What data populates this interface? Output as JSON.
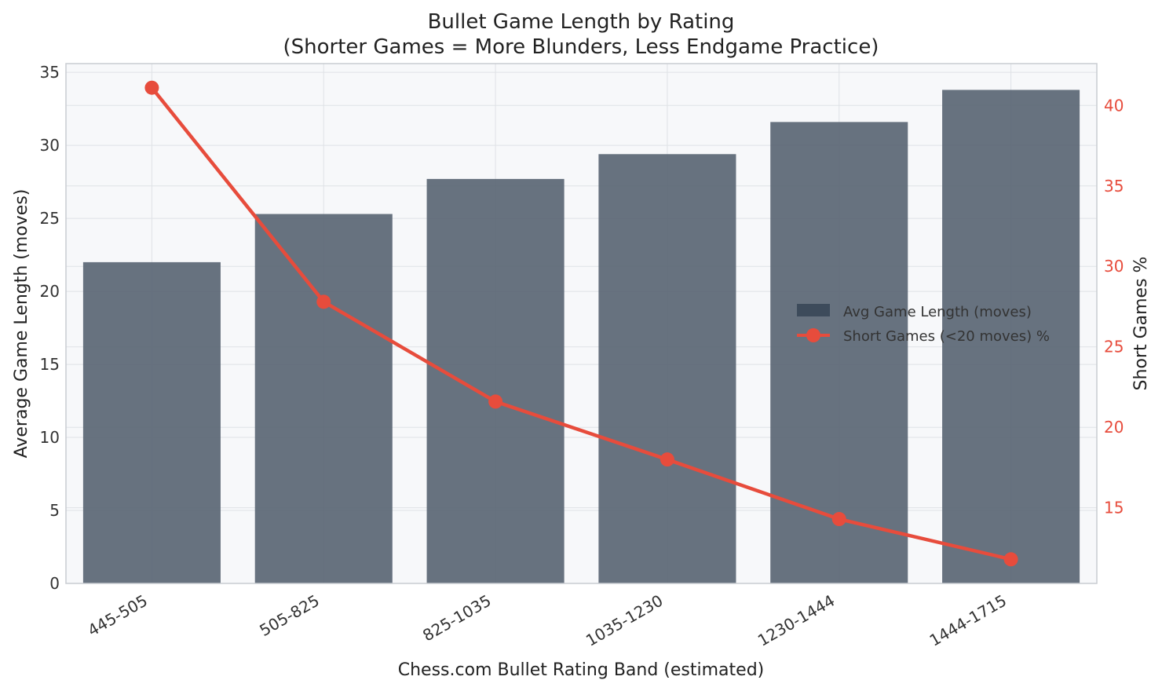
{
  "chart_data": {
    "type": "bar",
    "title": "Bullet Game Length by Rating",
    "subtitle": "(Shorter Games = More Blunders, Less Endgame Practice)",
    "xlabel": "Chess.com Bullet Rating Band (estimated)",
    "ylabel": "Average Game Length (moves)",
    "y2label": "Short Games %",
    "categories": [
      "445-505",
      "505-825",
      "825-1035",
      "1035-1230",
      "1230-1444",
      "1444-1715"
    ],
    "ylim": [
      0,
      35.6
    ],
    "y2lim": [
      10.3,
      42.6
    ],
    "yticks": [
      "0",
      "5",
      "10",
      "15",
      "20",
      "25",
      "30",
      "35"
    ],
    "y2ticks": [
      "15",
      "20",
      "25",
      "30",
      "35",
      "40"
    ],
    "grid": true,
    "legend_position": "center-right",
    "series": [
      {
        "name": "Avg Game Length (moves)",
        "type": "bar",
        "axis": "left",
        "color": "#5a6674",
        "values": [
          22.0,
          25.3,
          27.7,
          29.4,
          31.6,
          33.8
        ]
      },
      {
        "name": "Short Games (<20 moves) %",
        "type": "line",
        "axis": "right",
        "color": "#e74c3c",
        "values": [
          41.1,
          27.8,
          21.6,
          18.0,
          14.3,
          11.8
        ]
      }
    ],
    "colors": {
      "bar": "#5a6674",
      "legend_bar": "#3d4b5b",
      "line": "#e74c3c",
      "plot_bg": "#f7f8fa",
      "grid": "#dfe2e6"
    }
  }
}
